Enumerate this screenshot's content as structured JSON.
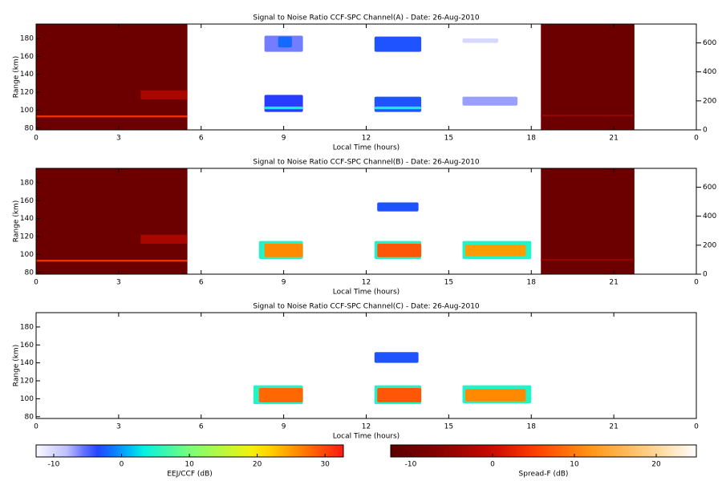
{
  "chart_data": [
    {
      "type": "heatmap",
      "title": "Signal to Noise Ratio CCF-SPC Channel(A) - Date: 26-Aug-2010",
      "xlabel": "Local Time (hours)",
      "ylabel": "Range (km)",
      "xlim": [
        0,
        24
      ],
      "xticks": [
        0,
        3,
        6,
        9,
        12,
        15,
        18,
        21,
        {
          "value": 24,
          "label": "0"
        }
      ],
      "ylim": [
        78,
        196
      ],
      "yticks": [
        80,
        100,
        120,
        140,
        160,
        180
      ],
      "y2lim": [
        0,
        730
      ],
      "y2ticks": [
        0,
        200,
        400,
        600
      ],
      "spread_f": [
        {
          "x": [
            0,
            5.5
          ],
          "y": [
            78,
            196
          ],
          "value": -10
        },
        {
          "x": [
            0,
            5.5
          ],
          "y": [
            92,
            94
          ],
          "value": 4
        },
        {
          "x": [
            3.8,
            5.5
          ],
          "y": [
            112,
            122
          ],
          "value": -3
        },
        {
          "x": [
            18.35,
            21.75
          ],
          "y": [
            78,
            196
          ],
          "value": -10
        },
        {
          "x": [
            18.35,
            21.75
          ],
          "y": [
            93,
            95
          ],
          "value": -5
        }
      ],
      "eej": [
        {
          "x": [
            8.3,
            9.7
          ],
          "y": [
            165,
            183
          ],
          "value": -6
        },
        {
          "x": [
            8.8,
            9.3
          ],
          "y": [
            170,
            182
          ],
          "value": -2
        },
        {
          "x": [
            12.3,
            14.0
          ],
          "y": [
            165,
            182
          ],
          "value": -3
        },
        {
          "x": [
            15.5,
            16.8
          ],
          "y": [
            175,
            180
          ],
          "value": -10
        },
        {
          "x": [
            8.3,
            9.7
          ],
          "y": [
            98,
            117
          ],
          "value": -4
        },
        {
          "x": [
            8.3,
            9.7
          ],
          "y": [
            101,
            104
          ],
          "value": 4
        },
        {
          "x": [
            12.3,
            14.0
          ],
          "y": [
            98,
            115
          ],
          "value": -3
        },
        {
          "x": [
            12.3,
            14.0
          ],
          "y": [
            101,
            104
          ],
          "value": 4
        },
        {
          "x": [
            15.5,
            17.5
          ],
          "y": [
            105,
            115
          ],
          "value": -7
        }
      ]
    },
    {
      "type": "heatmap",
      "title": "Signal to Noise Ratio CCF-SPC Channel(B) - Date: 26-Aug-2010",
      "xlabel": "Local Time (hours)",
      "ylabel": "Range (km)",
      "xlim": [
        0,
        24
      ],
      "xticks": [
        0,
        3,
        6,
        9,
        12,
        15,
        18,
        21,
        {
          "value": 24,
          "label": "0"
        }
      ],
      "ylim": [
        78,
        196
      ],
      "yticks": [
        80,
        100,
        120,
        140,
        160,
        180
      ],
      "y2lim": [
        0,
        730
      ],
      "y2ticks": [
        0,
        200,
        400,
        600
      ],
      "spread_f": [
        {
          "x": [
            0,
            5.5
          ],
          "y": [
            78,
            196
          ],
          "value": -10
        },
        {
          "x": [
            0,
            5.5
          ],
          "y": [
            92,
            94
          ],
          "value": 4
        },
        {
          "x": [
            3.8,
            5.5
          ],
          "y": [
            112,
            122
          ],
          "value": -3
        },
        {
          "x": [
            18.35,
            21.75
          ],
          "y": [
            78,
            196
          ],
          "value": -10
        },
        {
          "x": [
            18.35,
            21.75
          ],
          "y": [
            93,
            95
          ],
          "value": -5
        }
      ],
      "eej": [
        {
          "x": [
            8.1,
            9.7
          ],
          "y": [
            95,
            115
          ],
          "value": 5
        },
        {
          "x": [
            8.3,
            9.7
          ],
          "y": [
            97,
            112
          ],
          "value": 26
        },
        {
          "x": [
            12.3,
            14.0
          ],
          "y": [
            95,
            115
          ],
          "value": 5
        },
        {
          "x": [
            12.4,
            14.0
          ],
          "y": [
            97,
            112
          ],
          "value": 29
        },
        {
          "x": [
            15.5,
            18.0
          ],
          "y": [
            95,
            115
          ],
          "value": 5
        },
        {
          "x": [
            15.6,
            17.8
          ],
          "y": [
            98,
            111
          ],
          "value": 25
        },
        {
          "x": [
            12.4,
            13.9
          ],
          "y": [
            148,
            158
          ],
          "value": -3
        }
      ]
    },
    {
      "type": "heatmap",
      "title": "Signal to Noise Ratio CCF-SPC Channel(C) - Date: 26-Aug-2010",
      "xlabel": "Local Time (hours)",
      "ylabel": "Range (km)",
      "xlim": [
        0,
        24
      ],
      "xticks": [
        0,
        3,
        6,
        9,
        12,
        15,
        18,
        21,
        {
          "value": 24,
          "label": "0"
        }
      ],
      "ylim": [
        78,
        196
      ],
      "yticks": [
        80,
        100,
        120,
        140,
        160,
        180
      ],
      "spread_f": [],
      "eej": [
        {
          "x": [
            7.9,
            9.7
          ],
          "y": [
            94,
            115
          ],
          "value": 5
        },
        {
          "x": [
            8.1,
            9.7
          ],
          "y": [
            96,
            112
          ],
          "value": 28
        },
        {
          "x": [
            12.3,
            14.0
          ],
          "y": [
            94,
            115
          ],
          "value": 5
        },
        {
          "x": [
            12.4,
            14.0
          ],
          "y": [
            96,
            112
          ],
          "value": 29
        },
        {
          "x": [
            15.5,
            18.0
          ],
          "y": [
            95,
            115
          ],
          "value": 5
        },
        {
          "x": [
            15.6,
            17.8
          ],
          "y": [
            97,
            111
          ],
          "value": 26
        },
        {
          "x": [
            12.3,
            13.9
          ],
          "y": [
            140,
            152
          ],
          "value": -3
        }
      ]
    }
  ],
  "colorbars": [
    {
      "label": "EEJ/CCF (dB)",
      "lim": [
        -12.6,
        32.7
      ],
      "ticks": [
        -10,
        0,
        10,
        20,
        30
      ]
    },
    {
      "label": "Spread-F (dB)",
      "lim": [
        -12.45,
        24.9
      ],
      "ticks": [
        -10,
        0,
        10,
        20
      ]
    }
  ]
}
